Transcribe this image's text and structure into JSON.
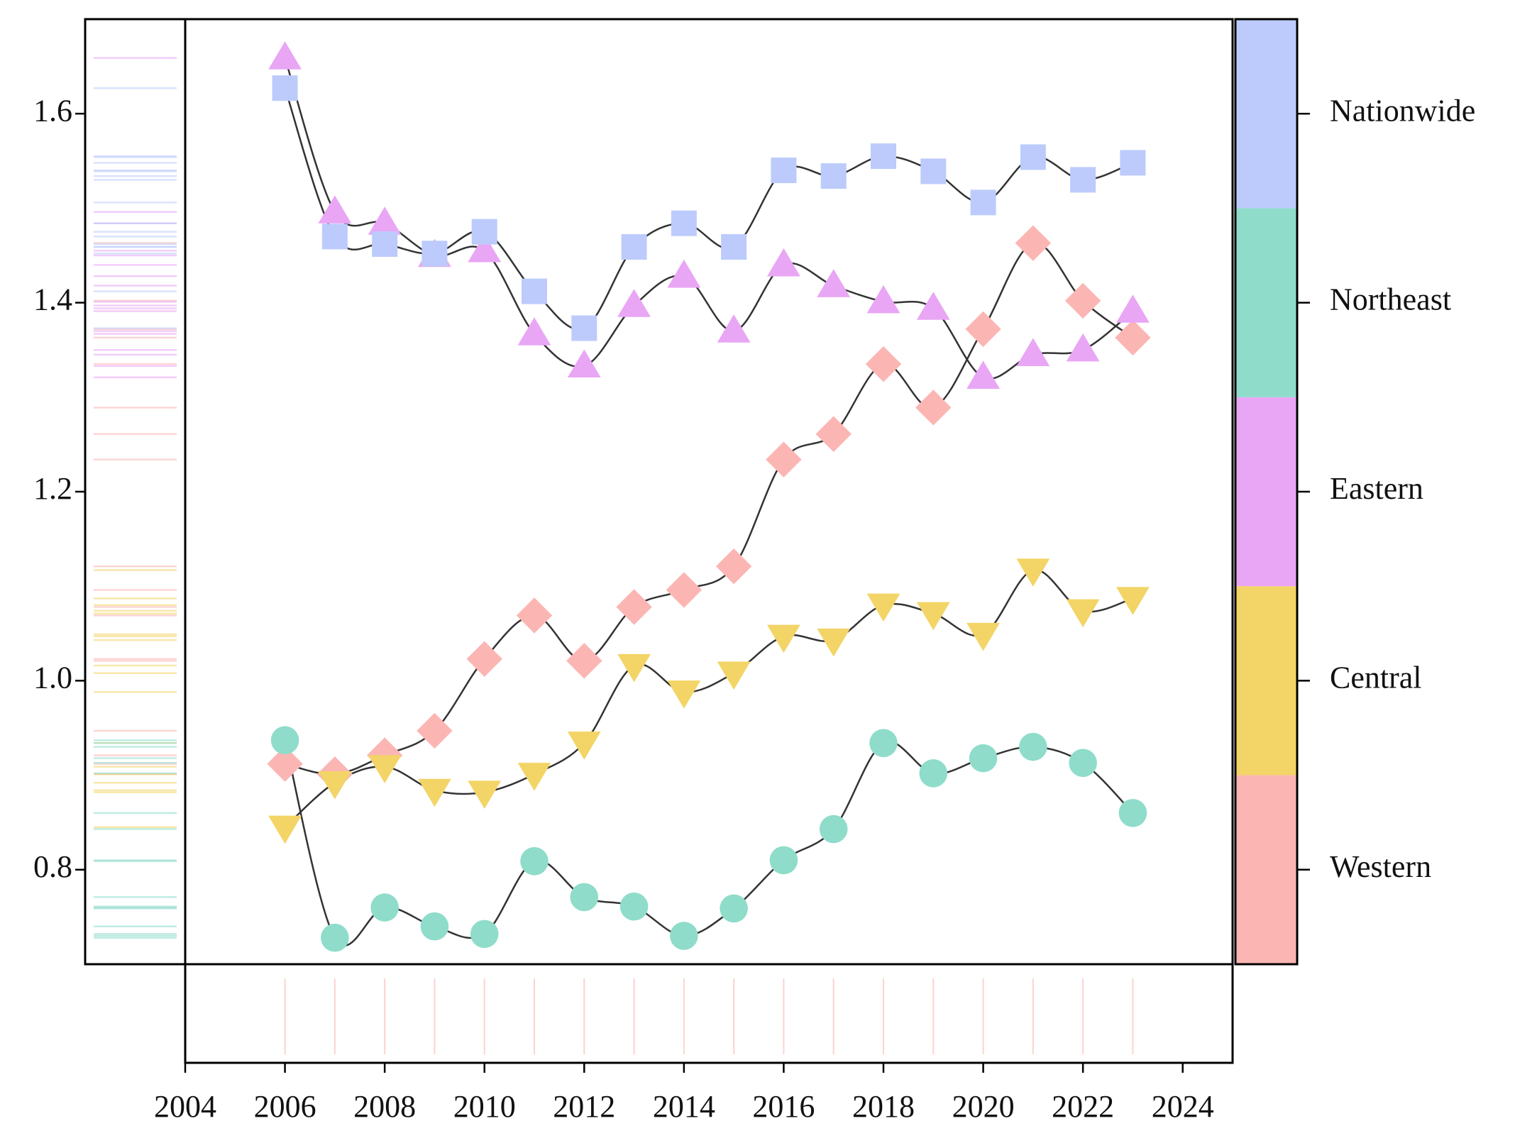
{
  "chart_data": {
    "type": "line",
    "x": [
      2006,
      2007,
      2008,
      2009,
      2010,
      2011,
      2012,
      2013,
      2014,
      2015,
      2016,
      2017,
      2018,
      2019,
      2020,
      2021,
      2022,
      2023
    ],
    "series": [
      {
        "name": "Western",
        "color": "#fbb6b4",
        "marker": "diamond",
        "values": [
          0.912,
          0.901,
          0.921,
          0.947,
          1.023,
          1.069,
          1.021,
          1.078,
          1.096,
          1.121,
          1.234,
          1.261,
          1.335,
          1.289,
          1.372,
          1.463,
          1.402,
          1.363
        ]
      },
      {
        "name": "Central",
        "color": "#f3d466",
        "marker": "triangle-down",
        "values": [
          0.845,
          0.892,
          0.909,
          0.884,
          0.882,
          0.901,
          0.934,
          1.016,
          0.988,
          1.008,
          1.047,
          1.043,
          1.08,
          1.071,
          1.049,
          1.117,
          1.074,
          1.087
        ]
      },
      {
        "name": "Eastern",
        "color": "#e9a6f5",
        "marker": "triangle-up",
        "values": [
          1.659,
          1.496,
          1.484,
          1.45,
          1.455,
          1.367,
          1.333,
          1.397,
          1.428,
          1.37,
          1.44,
          1.418,
          1.401,
          1.394,
          1.321,
          1.345,
          1.35,
          1.391
        ]
      },
      {
        "name": "Northeast",
        "color": "#8fdccb",
        "marker": "circle",
        "values": [
          0.937,
          0.728,
          0.76,
          0.74,
          0.732,
          0.809,
          0.771,
          0.761,
          0.73,
          0.759,
          0.81,
          0.843,
          0.934,
          0.902,
          0.918,
          0.93,
          0.913,
          0.86
        ]
      },
      {
        "name": "Nationwide",
        "color": "#bccbfb",
        "marker": "square",
        "values": [
          1.627,
          1.47,
          1.462,
          1.452,
          1.475,
          1.412,
          1.373,
          1.459,
          1.484,
          1.459,
          1.54,
          1.534,
          1.555,
          1.539,
          1.506,
          1.554,
          1.53,
          1.548
        ]
      }
    ],
    "xlim": [
      2004,
      2025
    ],
    "xticks": [
      2004,
      2006,
      2008,
      2010,
      2012,
      2014,
      2016,
      2018,
      2020,
      2022,
      2024
    ],
    "ylim": [
      0.7,
      1.7
    ],
    "yticks": [
      0.8,
      {
        "value": 1,
        "label": "1.0"
      },
      1.2,
      1.4,
      1.6
    ],
    "line_color": "#333333"
  }
}
